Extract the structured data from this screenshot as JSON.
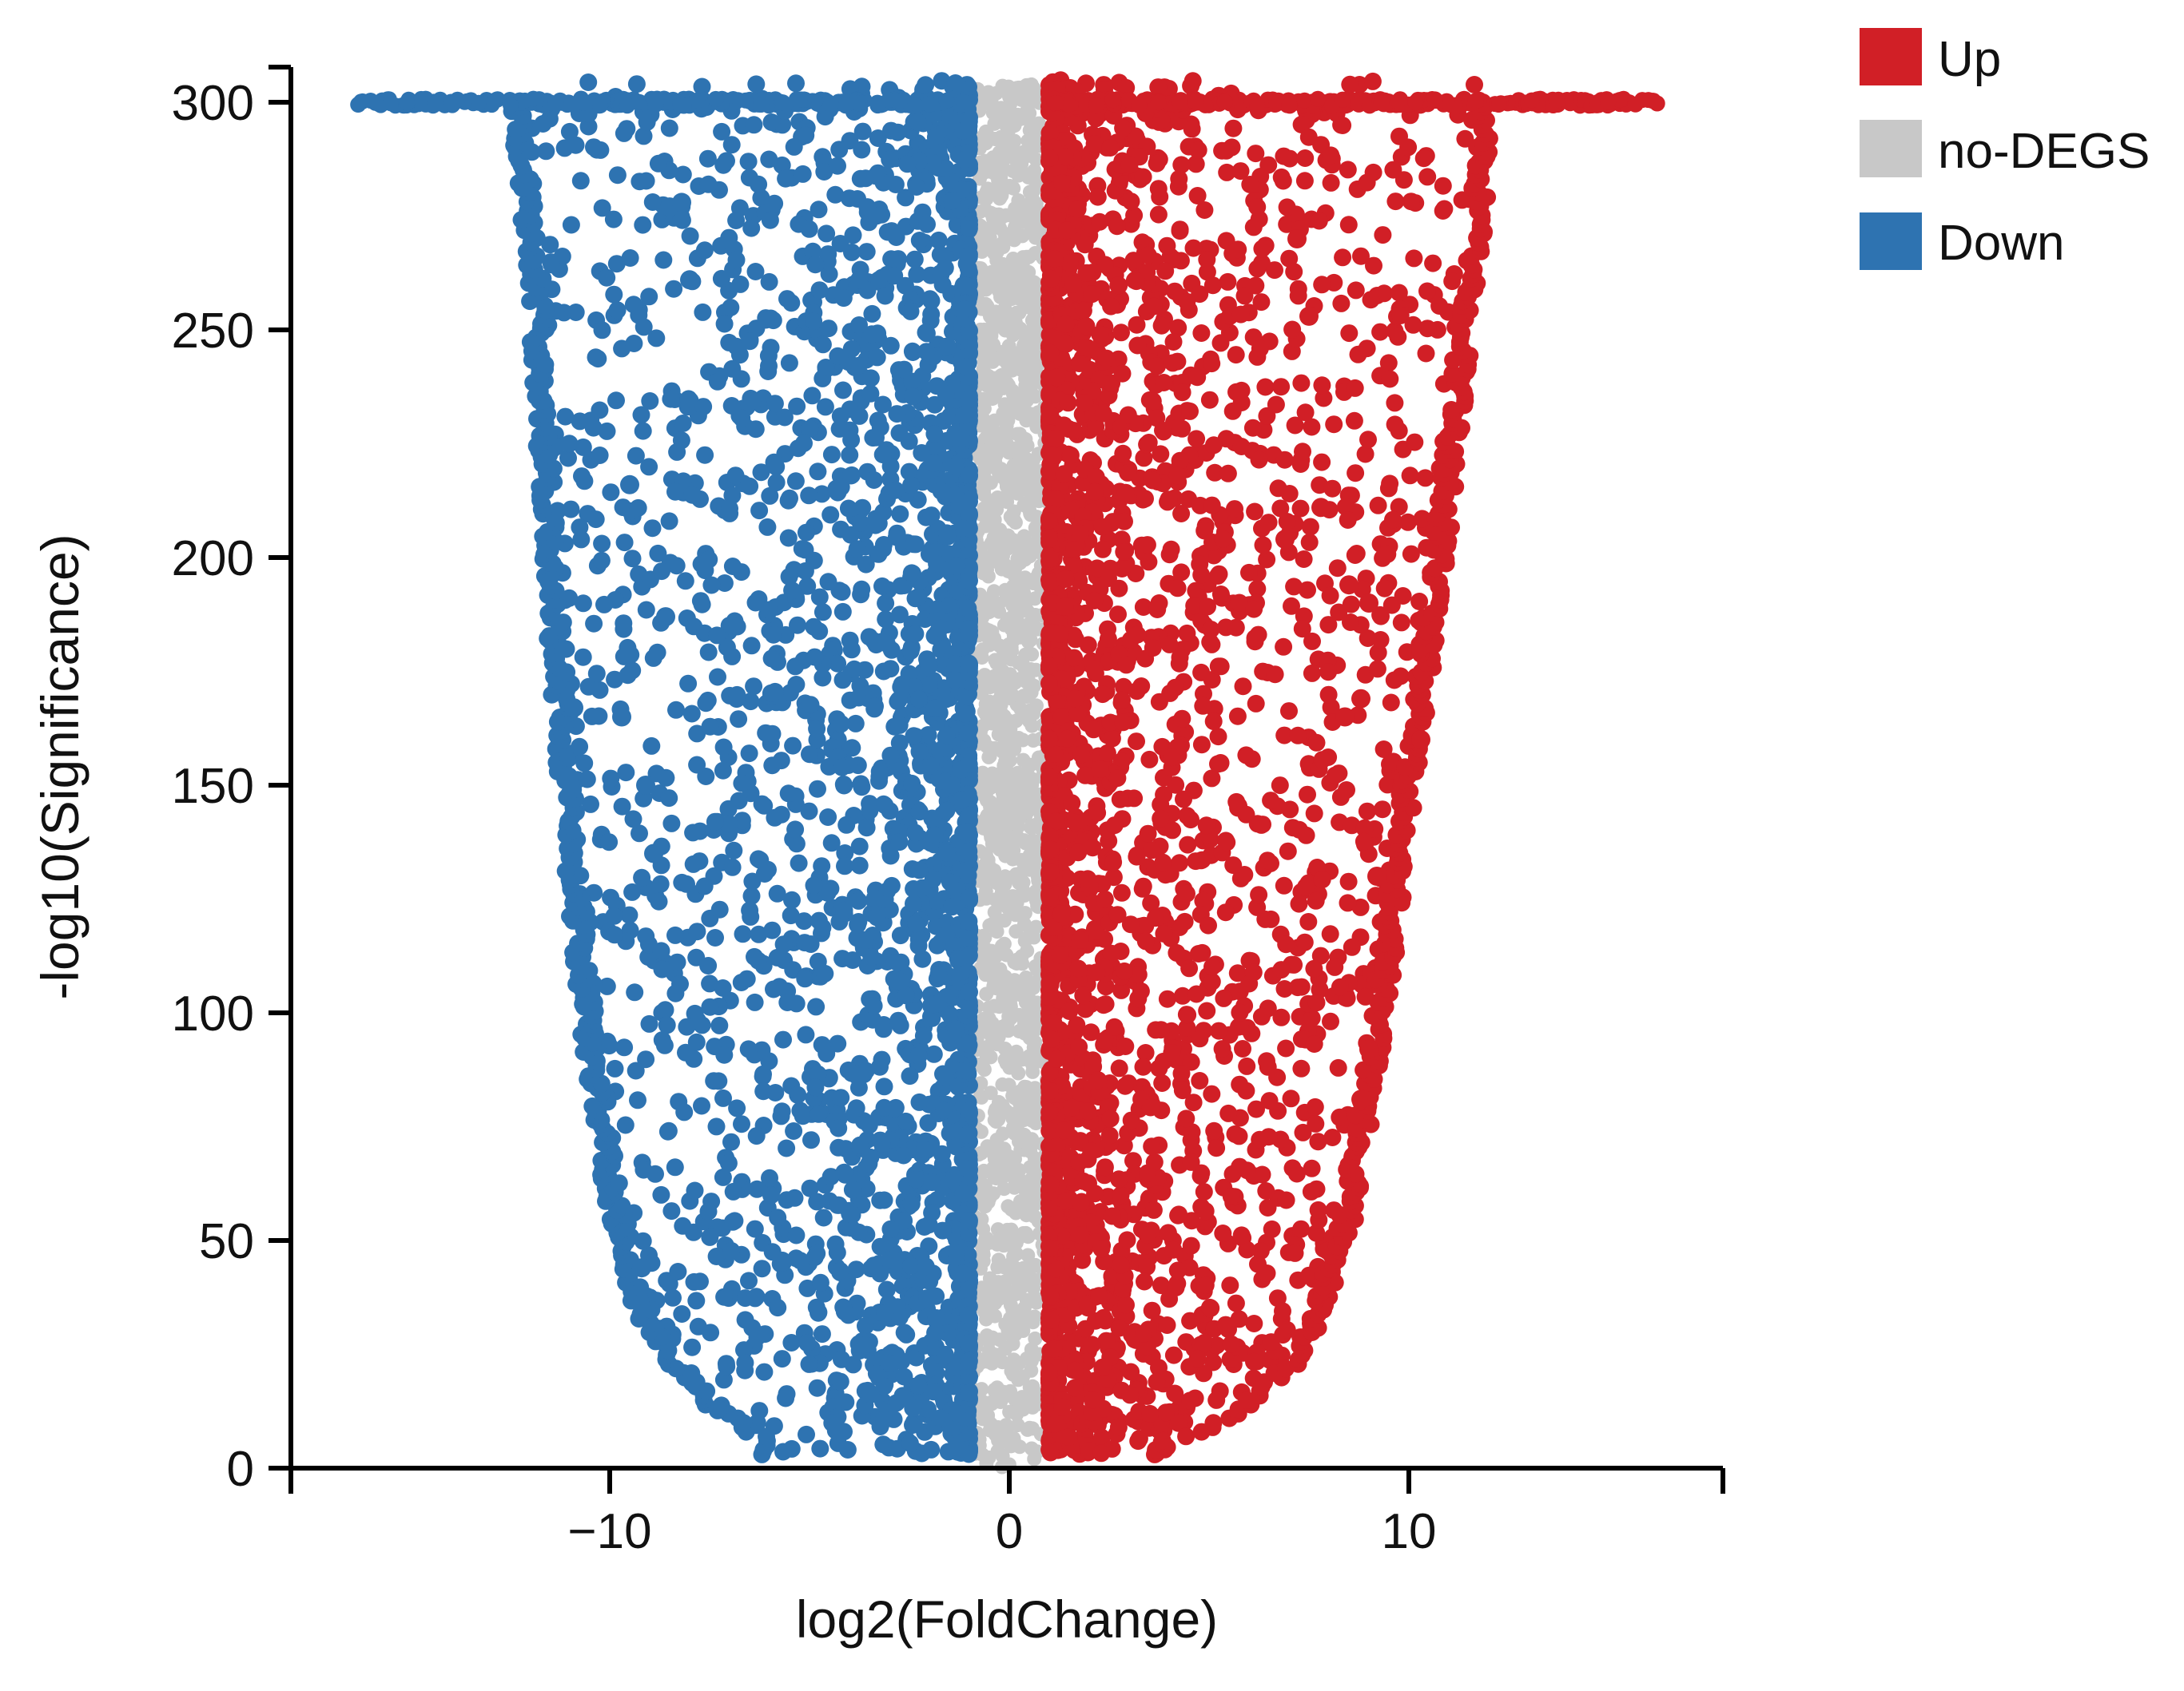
{
  "chart_data": {
    "type": "scatter",
    "title": "",
    "xlabel": "log2(FoldChange)",
    "ylabel": "-log10(Significance)",
    "xlim": [
      -17.8,
      17.8
    ],
    "ylim": [
      0,
      310
    ],
    "x_ticks": [
      -10,
      0,
      10
    ],
    "x_tick_labels": [
      "−10",
      "0",
      "10"
    ],
    "y_ticks": [
      0,
      50,
      100,
      150,
      200,
      250,
      300
    ],
    "y_tick_labels": [
      "0",
      "50",
      "100",
      "150",
      "200",
      "250",
      "300"
    ],
    "grid": false,
    "legend_position": "top-right",
    "series": [
      {
        "name": "Up",
        "color": "#d11f26",
        "region": {
          "x_min": 1.0,
          "x_max": 16.5,
          "y_min": 5,
          "y_max": 308
        },
        "boundary_curve": [
          [
            4.0,
            5
          ],
          [
            6.0,
            12
          ],
          [
            7.5,
            25
          ],
          [
            8.6,
            50
          ],
          [
            9.5,
            100
          ],
          [
            10.2,
            150
          ],
          [
            11.0,
            200
          ],
          [
            11.6,
            250
          ],
          [
            12.0,
            280
          ],
          [
            12.2,
            300
          ]
        ],
        "outliers": [
          [
            7.2,
            270
          ],
          [
            7.5,
            253
          ],
          [
            10.3,
            160
          ],
          [
            8.5,
            194
          ],
          [
            9.0,
            190
          ],
          [
            8.8,
            169
          ],
          [
            8.4,
            165
          ],
          [
            9.2,
            130
          ],
          [
            9.0,
            92
          ],
          [
            8.8,
            81
          ],
          [
            7.8,
            211
          ],
          [
            6.9,
            204
          ]
        ]
      },
      {
        "name": "no-DEGS",
        "color": "#c8c8c8",
        "region": {
          "x_min": -1.0,
          "x_max": 1.0,
          "y_min": 0,
          "y_max": 308
        }
      },
      {
        "name": "Down",
        "color": "#2e73b1",
        "region": {
          "x_min": -16.5,
          "x_max": -1.0,
          "y_min": 5,
          "y_max": 308
        },
        "boundary_curve": [
          [
            -6.2,
            5
          ],
          [
            -7.8,
            15
          ],
          [
            -9.2,
            30
          ],
          [
            -10.0,
            50
          ],
          [
            -10.8,
            100
          ],
          [
            -11.3,
            150
          ],
          [
            -11.7,
            200
          ],
          [
            -12.0,
            250
          ],
          [
            -12.3,
            280
          ],
          [
            -12.5,
            300
          ]
        ],
        "outliers": [
          [
            -9.2,
            44
          ],
          [
            -9.7,
            165
          ],
          [
            -8.5,
            277
          ],
          [
            -8.2,
            278
          ],
          [
            -8.0,
            261
          ],
          [
            -9.5,
            216
          ],
          [
            -9.1,
            150
          ],
          [
            -10.9,
            167
          ],
          [
            -8.6,
            187
          ],
          [
            -8.9,
            135
          ]
        ]
      }
    ]
  }
}
